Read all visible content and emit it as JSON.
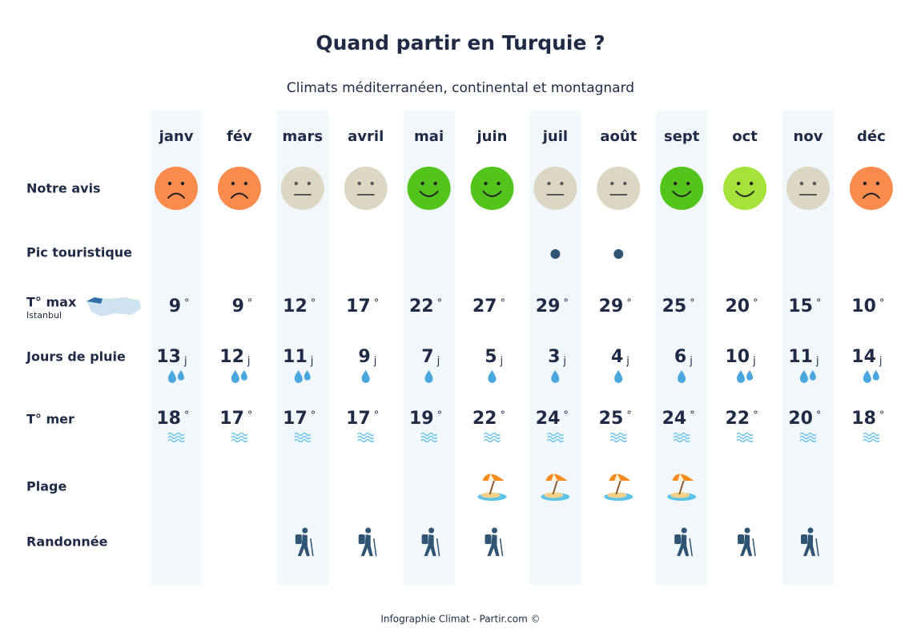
{
  "header": {
    "title": "Quand partir en Turquie ?",
    "subtitle": "Climats méditerranéen, continental et montagnard"
  },
  "months": [
    "janv",
    "fév",
    "mars",
    "avril",
    "mai",
    "juin",
    "juil",
    "août",
    "sept",
    "oct",
    "nov",
    "déc"
  ],
  "avis": {
    "label": "Notre avis",
    "faces": [
      {
        "mood": "sad",
        "color": "#fa8b4e"
      },
      {
        "mood": "sad",
        "color": "#fa8b4e"
      },
      {
        "mood": "neutral",
        "color": "#dbd7c3"
      },
      {
        "mood": "neutral",
        "color": "#dbd7c3"
      },
      {
        "mood": "happy",
        "color": "#52c41c"
      },
      {
        "mood": "happy",
        "color": "#52c41c"
      },
      {
        "mood": "neutral",
        "color": "#dbd7c3"
      },
      {
        "mood": "neutral",
        "color": "#dbd7c3"
      },
      {
        "mood": "happy",
        "color": "#52c41c"
      },
      {
        "mood": "happy",
        "color": "#a5e23a"
      },
      {
        "mood": "neutral",
        "color": "#dbd7c3"
      },
      {
        "mood": "sad",
        "color": "#fa8b4e"
      }
    ]
  },
  "pic": {
    "label": "Pic touristique",
    "values": [
      false,
      false,
      false,
      false,
      false,
      false,
      true,
      true,
      false,
      false,
      false,
      false
    ]
  },
  "tmax": {
    "label": "T° max",
    "sublabel": "Istanbul",
    "unit": "°",
    "values": [
      9,
      9,
      12,
      17,
      22,
      27,
      29,
      29,
      25,
      20,
      15,
      10
    ]
  },
  "pluie": {
    "label": "Jours de pluie",
    "unit": "j",
    "values": [
      13,
      12,
      11,
      9,
      7,
      5,
      3,
      4,
      6,
      10,
      11,
      14
    ],
    "drops": [
      2,
      2,
      2,
      1,
      1,
      1,
      1,
      1,
      1,
      2,
      2,
      2
    ]
  },
  "mer": {
    "label": "T° mer",
    "unit": "°",
    "values": [
      18,
      17,
      17,
      17,
      19,
      22,
      24,
      25,
      24,
      22,
      20,
      18
    ]
  },
  "plage": {
    "label": "Plage",
    "values": [
      false,
      false,
      false,
      false,
      false,
      true,
      true,
      true,
      true,
      false,
      false,
      false
    ]
  },
  "rando": {
    "label": "Randonnée",
    "values": [
      false,
      false,
      true,
      true,
      true,
      true,
      false,
      false,
      true,
      true,
      true,
      false
    ]
  },
  "footer": "Infographie Climat - Partir.com ©"
}
